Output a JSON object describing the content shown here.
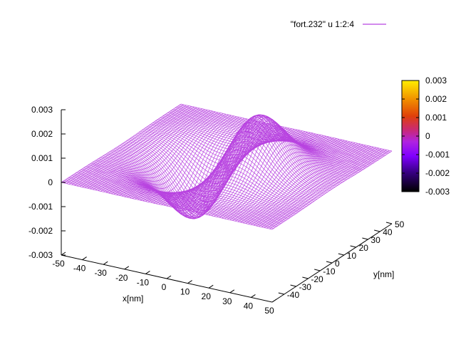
{
  "chart_data": {
    "type": "surface",
    "title": "",
    "legend": {
      "entries": [
        {
          "label": "\"fort.232\" u 1:2:4",
          "color": "#b844e0"
        }
      ],
      "placement": "top-right"
    },
    "xlabel": "x[nm]",
    "ylabel": "y[nm]",
    "zlabel": "",
    "xlim": [
      -50,
      50
    ],
    "ylim": [
      -50,
      50
    ],
    "zlim": [
      -0.003,
      0.003
    ],
    "x_ticks": [
      "-50",
      "-40",
      "-30",
      "-20",
      "-10",
      "0",
      "10",
      "20",
      "30",
      "40",
      "50"
    ],
    "y_ticks": [
      "-40",
      "-30",
      "-20",
      "-10",
      "0",
      "10",
      "20",
      "30",
      "40",
      "50"
    ],
    "z_ticks": [
      "-0.003",
      "-0.002",
      "-0.001",
      "0",
      "0.001",
      "0.002",
      "0.003"
    ],
    "colorbar": {
      "range": [
        -0.003,
        0.003
      ],
      "ticks": [
        "0.003",
        "0.002",
        "0.001",
        "0",
        "-0.001",
        "-0.002",
        "-0.003"
      ],
      "palette": "gnuplot-default"
    },
    "surface": {
      "description_values": "mesh of z(x,y) sampled on a 101x101 grid over x,y in [-50,50]",
      "peak": {
        "x": 10,
        "y": 0,
        "z": 0.0031
      },
      "trough": {
        "x": -10,
        "y": 0,
        "z": -0.0029
      },
      "baseline_z": 0
    },
    "grid": false
  },
  "colors": {
    "mesh": "#b844e0",
    "axis": "#000000"
  }
}
